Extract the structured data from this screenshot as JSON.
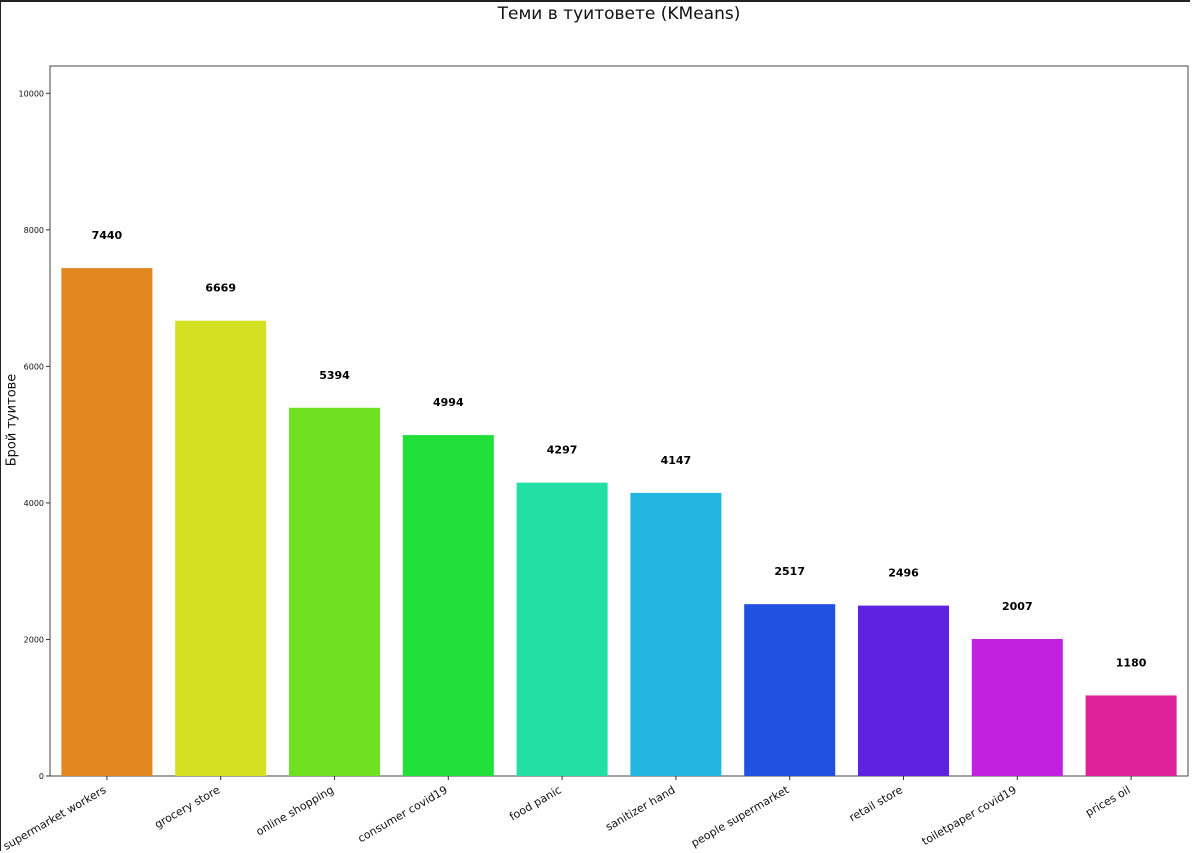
{
  "chart_data": {
    "type": "bar",
    "title": "Теми в туитовете (KMeans)",
    "xlabel": "",
    "ylabel": "Брой туитове",
    "ylim": [
      0,
      10400
    ],
    "yticks": [
      0,
      2000,
      4000,
      6000,
      8000,
      10000
    ],
    "categories": [
      "supermarket workers",
      "grocery store",
      "online shopping",
      "consumer covid19",
      "food panic",
      "sanitizer hand",
      "people supermarket",
      "retail store",
      "toiletpaper covid19",
      "prices oil"
    ],
    "values": [
      7440,
      6669,
      5394,
      4994,
      4297,
      4147,
      2517,
      2496,
      2007,
      1180
    ],
    "colors": [
      "#e08722",
      "#d4e022",
      "#70e022",
      "#22e03a",
      "#22e0a4",
      "#22b6e0",
      "#2250e0",
      "#5e22e0",
      "#c222e0",
      "#e0229a"
    ],
    "grid": false,
    "legend": "none"
  }
}
